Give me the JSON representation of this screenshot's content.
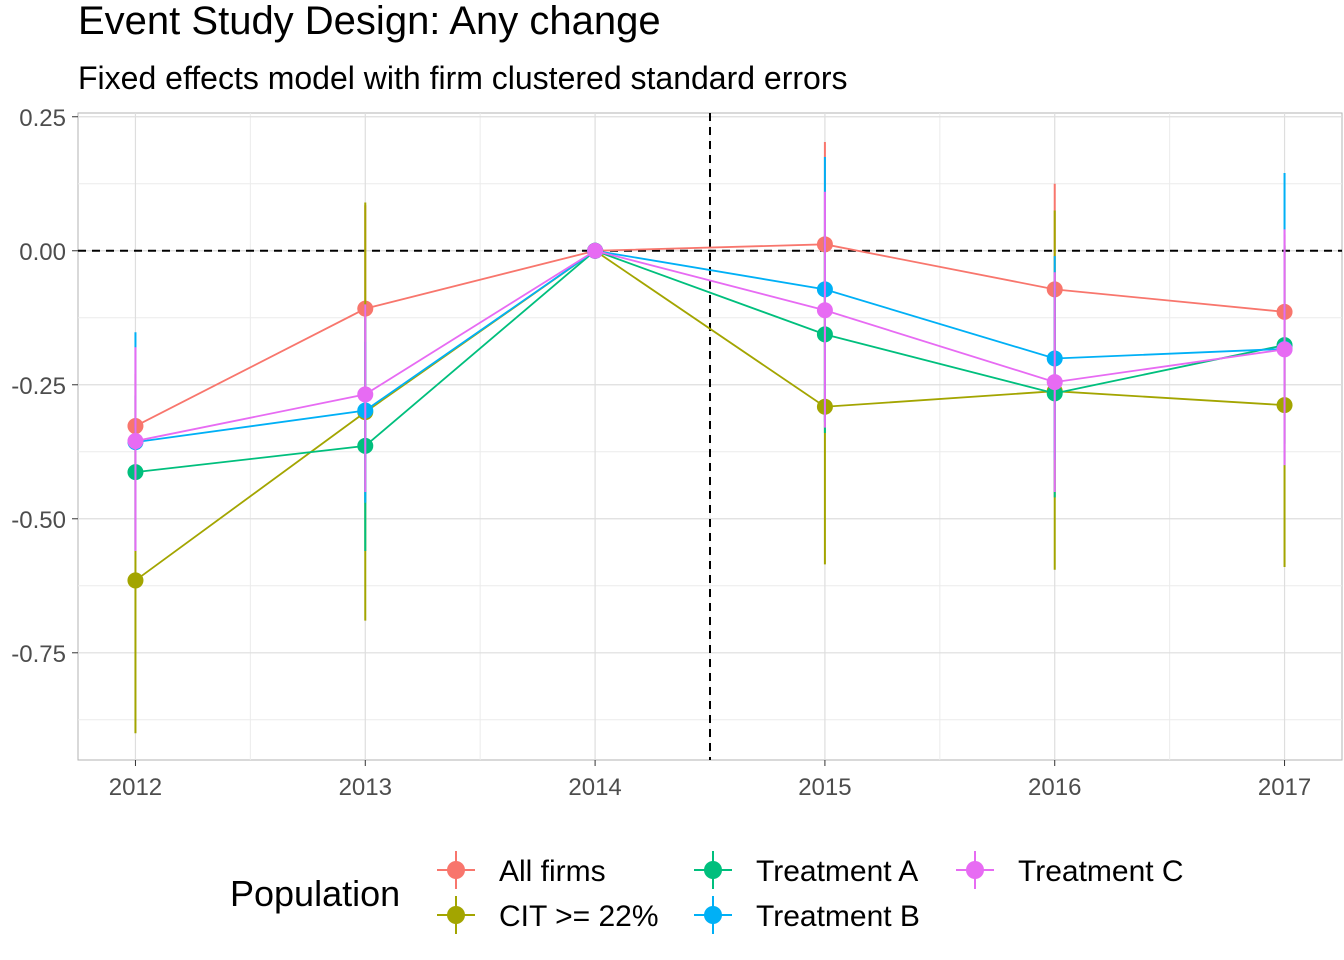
{
  "chart_data": {
    "type": "line",
    "title": "Event Study Design: Any change",
    "subtitle": "Fixed effects model with firm clustered standard errors",
    "xlabel": "",
    "ylabel": "",
    "x": [
      2012,
      2013,
      2014,
      2015,
      2016,
      2017
    ],
    "xlim": [
      2011.75,
      2017.25
    ],
    "ylim": [
      -0.95,
      0.257
    ],
    "yticks": [
      0.25,
      0.0,
      -0.25,
      -0.5,
      -0.75
    ],
    "ytick_labels": [
      "0.25",
      "0.00",
      "-0.25",
      "-0.50",
      "-0.75"
    ],
    "xtick_labels": [
      "2012",
      "2013",
      "2014",
      "2015",
      "2016",
      "2017"
    ],
    "grid": true,
    "reference_lines": {
      "horizontal": 0.0,
      "vertical": 2014.5
    },
    "legend": {
      "title": "Population",
      "placement": "bottom"
    },
    "series": [
      {
        "name": "All firms",
        "color": "#F8766D",
        "values": [
          -0.327,
          -0.108,
          0.0,
          0.012,
          -0.072,
          -0.114
        ],
        "lower": [
          -0.42,
          -0.3,
          0.0,
          -0.18,
          -0.27,
          -0.26
        ],
        "upper": [
          -0.23,
          0.085,
          0.0,
          0.203,
          0.125,
          0.03
        ]
      },
      {
        "name": "CIT >= 22%",
        "color": "#A3A500",
        "values": [
          -0.615,
          -0.301,
          0.0,
          -0.291,
          -0.262,
          -0.288
        ],
        "lower": [
          -0.9,
          -0.69,
          0.0,
          -0.585,
          -0.595,
          -0.59
        ],
        "upper": [
          -0.33,
          0.09,
          0.0,
          0.005,
          0.075,
          0.01
        ]
      },
      {
        "name": "Treatment A",
        "color": "#00BF7D",
        "values": [
          -0.413,
          -0.364,
          0.0,
          -0.156,
          -0.266,
          -0.176
        ],
        "lower": [
          -0.56,
          -0.56,
          0.0,
          -0.34,
          -0.46,
          -0.36
        ],
        "upper": [
          -0.27,
          -0.17,
          0.0,
          0.03,
          -0.07,
          0.01
        ]
      },
      {
        "name": "Treatment B",
        "color": "#00B0F6",
        "values": [
          -0.357,
          -0.298,
          0.0,
          -0.072,
          -0.201,
          -0.183
        ],
        "lower": [
          -0.56,
          -0.47,
          0.0,
          -0.32,
          -0.39,
          -0.4
        ],
        "upper": [
          -0.152,
          -0.125,
          0.0,
          0.175,
          -0.01,
          0.145
        ]
      },
      {
        "name": "Treatment C",
        "color": "#E76BF3",
        "values": [
          -0.355,
          -0.268,
          0.0,
          -0.111,
          -0.245,
          -0.184
        ],
        "lower": [
          -0.56,
          -0.45,
          0.0,
          -0.33,
          -0.45,
          -0.4
        ],
        "upper": [
          -0.18,
          -0.1,
          0.0,
          0.11,
          -0.04,
          0.04
        ]
      }
    ]
  }
}
